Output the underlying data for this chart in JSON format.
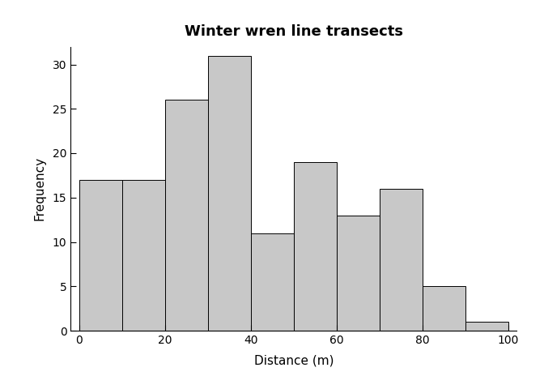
{
  "title": "Winter wren line transects",
  "xlabel": "Distance (m)",
  "ylabel": "Frequency",
  "bar_edges": [
    0,
    10,
    20,
    30,
    40,
    50,
    60,
    70,
    80,
    90,
    100
  ],
  "bar_heights": [
    17,
    17,
    26,
    31,
    11,
    19,
    13,
    16,
    5,
    1
  ],
  "bar_color": "#c8c8c8",
  "bar_edgecolor": "#000000",
  "xlim": [
    -2,
    102
  ],
  "ylim": [
    0,
    32
  ],
  "xticks": [
    0,
    20,
    40,
    60,
    80,
    100
  ],
  "yticks": [
    0,
    5,
    10,
    15,
    20,
    25,
    30
  ],
  "title_fontsize": 13,
  "axis_label_fontsize": 11,
  "tick_fontsize": 10,
  "background_color": "#ffffff",
  "bar_linewidth": 0.7
}
